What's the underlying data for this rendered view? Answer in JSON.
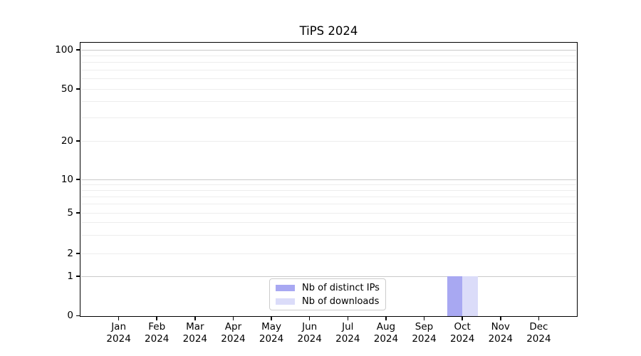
{
  "figure": {
    "background": "#ffffff"
  },
  "chart_data": {
    "type": "bar",
    "title": "TiPS 2024",
    "xlabel": "",
    "ylabel": "",
    "categories": [
      "Jan",
      "Feb",
      "Mar",
      "Apr",
      "May",
      "Jun",
      "Jul",
      "Aug",
      "Sep",
      "Oct",
      "Nov",
      "Dec"
    ],
    "x_year_label": "2024",
    "series": [
      {
        "name": "Nb of distinct IPs",
        "color": "#a8a8f2",
        "values": [
          0,
          0,
          0,
          0,
          0,
          0,
          0,
          0,
          0,
          1,
          0,
          0
        ]
      },
      {
        "name": "Nb of downloads",
        "color": "#dbdcf9",
        "values": [
          0,
          0,
          0,
          0,
          0,
          0,
          0,
          0,
          0,
          1,
          0,
          0
        ]
      }
    ],
    "y_axis": {
      "scale": "symlog",
      "tick_values": [
        0,
        1,
        2,
        5,
        10,
        20,
        50,
        100
      ],
      "major_gridlines": [
        1,
        10,
        100
      ],
      "minor_gridlines": [
        2,
        3,
        4,
        5,
        6,
        7,
        8,
        9,
        20,
        30,
        40,
        50,
        60,
        70,
        80,
        90
      ],
      "ylim": [
        0,
        113
      ]
    },
    "grid": "horizontal",
    "legend_position": "lower center",
    "colors": {
      "grid_major": "#c9c9c9",
      "grid_minor": "#ededed",
      "axis": "#000000",
      "legend_border": "#cccccc",
      "legend_background": "#ffffff"
    }
  }
}
